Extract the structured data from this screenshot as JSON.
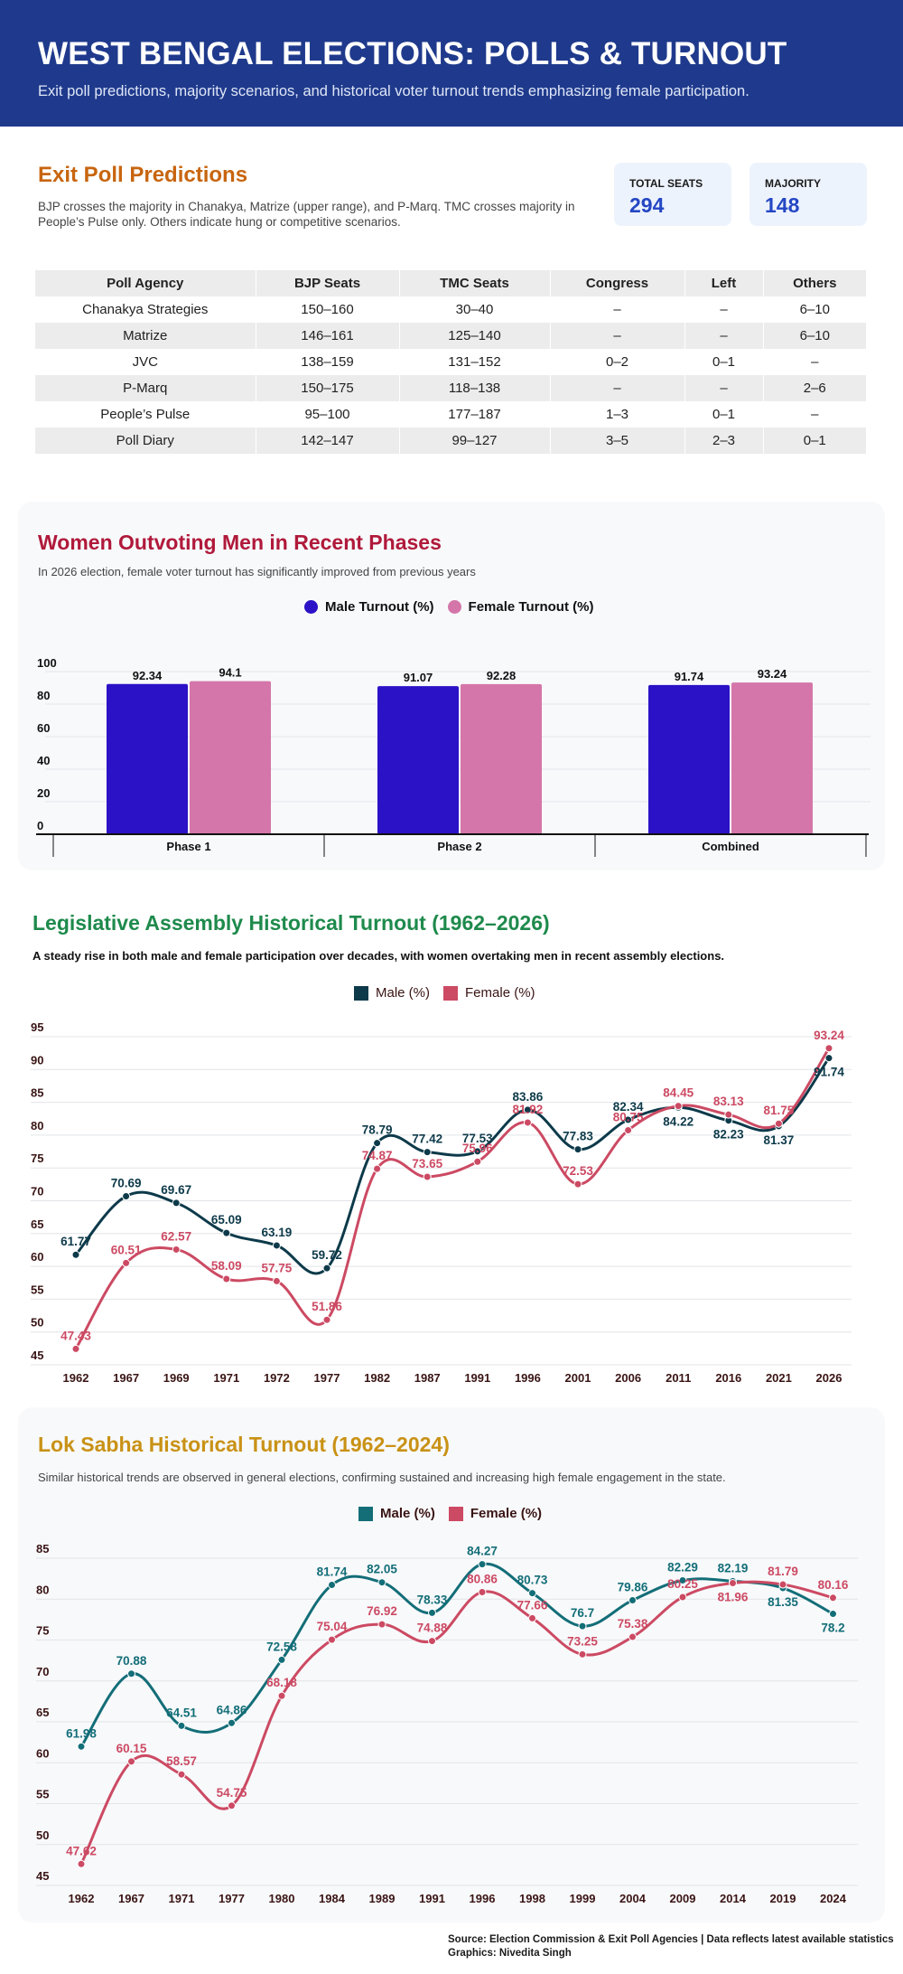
{
  "header": {
    "title": "WEST BENGAL ELECTIONS: POLLS & TURNOUT",
    "subtitle": "Exit poll predictions, majority scenarios, and historical voter turnout trends emphasizing female participation."
  },
  "exit_poll": {
    "title": "Exit Poll Predictions",
    "description": "BJP crosses the majority in Chanakya, Matrize (upper range), and P-Marq. TMC crosses majority in People’s Pulse only. Others indicate hung or competitive scenarios.",
    "stats": [
      {
        "label": "TOTAL SEATS",
        "value": "294"
      },
      {
        "label": "MAJORITY",
        "value": "148"
      }
    ],
    "table": {
      "columns": [
        "Poll Agency",
        "BJP Seats",
        "TMC Seats",
        "Congress",
        "Left",
        "Others"
      ],
      "rows": [
        [
          "Chanakya Strategies",
          "150–160",
          "30–40",
          "–",
          "–",
          "6–10"
        ],
        [
          "Matrize",
          "146–161",
          "125–140",
          "–",
          "–",
          "6–10"
        ],
        [
          "JVC",
          "138–159",
          "131–152",
          "0–2",
          "0–1",
          "–"
        ],
        [
          "P-Marq",
          "150–175",
          "118–138",
          "–",
          "–",
          "2–6"
        ],
        [
          "People’s Pulse",
          "95–100",
          "177–187",
          "1–3",
          "0–1",
          "–"
        ],
        [
          "Poll Diary",
          "142–147",
          "99–127",
          "3–5",
          "2–3",
          "0–1"
        ]
      ]
    }
  },
  "phases": {
    "title": "Women Outvoting Men in Recent Phases",
    "description": "In 2026 election, female voter turnout has significantly improved from previous years",
    "title_color": "#b0193a"
  },
  "assembly": {
    "title": "Legislative Assembly Historical Turnout (1962–2026)",
    "description": "A steady rise in both male and female participation over decades, with women overtaking men in recent assembly elections.",
    "title_color": "#1e8a4c"
  },
  "lok_sabha": {
    "title": "Lok Sabha Historical Turnout (1962–2024)",
    "description": "Similar historical trends are observed in general elections, confirming sustained and increasing high female engagement in the state.",
    "title_color": "#c99216"
  },
  "footer": {
    "source": "Source: Election Commission & Exit Poll Agencies | Data reflects latest available statistics",
    "credit": "Graphics: Nivedita Singh"
  },
  "chart_data": [
    {
      "type": "bar",
      "title": "Women Outvoting Men in Recent Phases",
      "categories": [
        "Phase 1",
        "Phase 2",
        "Combined"
      ],
      "series": [
        {
          "name": "Male Turnout (%)",
          "color": "#2b12c6",
          "values": [
            92.34,
            91.07,
            91.74
          ]
        },
        {
          "name": "Female Turnout (%)",
          "color": "#d476a9",
          "values": [
            94.1,
            92.28,
            93.24
          ]
        }
      ],
      "yticks": [
        0,
        20,
        40,
        60,
        80,
        100
      ],
      "ylim": [
        0,
        100
      ],
      "grid": true,
      "legend": "top-center"
    },
    {
      "type": "line",
      "title": "Legislative Assembly Historical Turnout (1962–2026)",
      "x": [
        "1962",
        "1967",
        "1969",
        "1971",
        "1972",
        "1977",
        "1982",
        "1987",
        "1991",
        "1996",
        "2001",
        "2006",
        "2011",
        "2016",
        "2021",
        "2026"
      ],
      "series": [
        {
          "name": "Male (%)",
          "color": "#0d3a4a",
          "values": [
            61.77,
            70.69,
            69.67,
            65.09,
            63.19,
            59.72,
            78.79,
            77.42,
            77.53,
            83.86,
            77.83,
            82.34,
            84.22,
            82.23,
            81.37,
            91.74
          ]
        },
        {
          "name": "Female (%)",
          "color": "#cc4a63",
          "values": [
            47.43,
            60.51,
            62.57,
            58.09,
            57.75,
            51.86,
            74.87,
            73.65,
            75.96,
            81.92,
            72.53,
            80.75,
            84.45,
            83.13,
            81.75,
            93.24
          ]
        }
      ],
      "yticks": [
        45,
        50,
        55,
        60,
        65,
        70,
        75,
        80,
        85,
        90,
        95
      ],
      "ylim": [
        45,
        95
      ],
      "grid": true,
      "legend": "top-center"
    },
    {
      "type": "line",
      "title": "Lok Sabha Historical Turnout (1962–2024)",
      "x": [
        "1962",
        "1967",
        "1971",
        "1977",
        "1980",
        "1984",
        "1989",
        "1991",
        "1996",
        "1998",
        "1999",
        "2004",
        "2009",
        "2014",
        "2019",
        "2024"
      ],
      "series": [
        {
          "name": "Male (%)",
          "color": "#136e78",
          "values": [
            61.98,
            70.88,
            64.51,
            64.86,
            72.58,
            81.74,
            82.05,
            78.33,
            84.27,
            80.73,
            76.7,
            79.86,
            82.29,
            82.19,
            81.35,
            78.2
          ]
        },
        {
          "name": "Female (%)",
          "color": "#cc4a63",
          "values": [
            47.62,
            60.15,
            58.57,
            54.75,
            68.18,
            75.04,
            76.92,
            74.88,
            80.86,
            77.66,
            73.25,
            75.38,
            80.25,
            81.96,
            81.79,
            80.16
          ]
        }
      ],
      "yticks": [
        45,
        50,
        55,
        60,
        65,
        70,
        75,
        80,
        85
      ],
      "ylim": [
        45,
        85
      ],
      "grid": true,
      "legend": "top-center"
    }
  ]
}
